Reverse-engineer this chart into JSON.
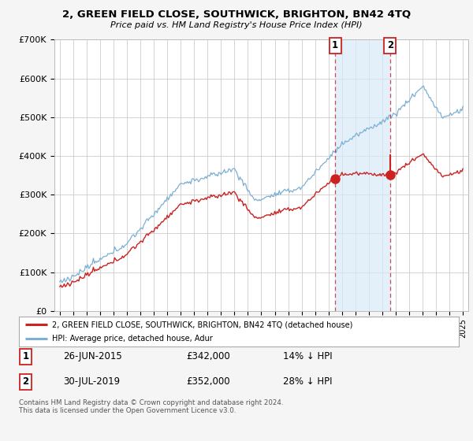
{
  "title": "2, GREEN FIELD CLOSE, SOUTHWICK, BRIGHTON, BN42 4TQ",
  "subtitle": "Price paid vs. HM Land Registry's House Price Index (HPI)",
  "ylim": [
    0,
    700000
  ],
  "yticks": [
    0,
    100000,
    200000,
    300000,
    400000,
    500000,
    600000,
    700000
  ],
  "ytick_labels": [
    "£0",
    "£100K",
    "£200K",
    "£300K",
    "£400K",
    "£500K",
    "£600K",
    "£700K"
  ],
  "hpi_color": "#7bafd4",
  "price_color": "#cc2222",
  "dashed_color": "#cc2222",
  "shade_color": "#d8eaf8",
  "background_color": "#f5f5f5",
  "plot_bg_color": "#ffffff",
  "grid_color": "#cccccc",
  "t1_year": 2015.5,
  "t1_price": 342000,
  "t2_year": 2019.58,
  "t2_price": 352000,
  "legend_line1": "2, GREEN FIELD CLOSE, SOUTHWICK, BRIGHTON, BN42 4TQ (detached house)",
  "legend_line2": "HPI: Average price, detached house, Adur",
  "table_row1": [
    "1",
    "26-JUN-2015",
    "£342,000",
    "14% ↓ HPI"
  ],
  "table_row2": [
    "2",
    "30-JUL-2019",
    "£352,000",
    "28% ↓ HPI"
  ],
  "footer": "Contains HM Land Registry data © Crown copyright and database right 2024.\nThis data is licensed under the Open Government Licence v3.0."
}
